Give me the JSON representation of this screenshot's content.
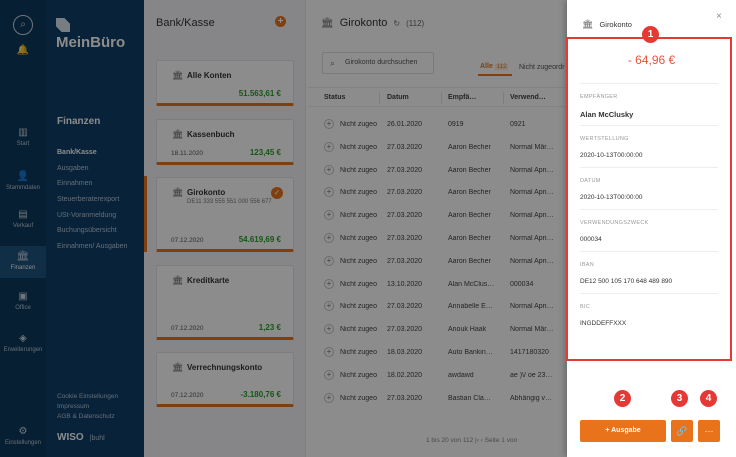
{
  "rail": {
    "items": [
      {
        "label": "",
        "icon": "bell-icon",
        "glyph": "🔔"
      },
      {
        "label": "Start",
        "icon": "chart-icon",
        "glyph": "▥"
      },
      {
        "label": "Stammdaten",
        "icon": "person-icon",
        "glyph": "👤"
      },
      {
        "label": "Verkauf",
        "icon": "document-icon",
        "glyph": "▤"
      },
      {
        "label": "Finanzen",
        "icon": "bank-icon",
        "glyph": "🏛"
      },
      {
        "label": "Office",
        "icon": "office-icon",
        "glyph": "▣"
      },
      {
        "label": "Erweiterungen",
        "icon": "puzzle-icon",
        "glyph": "◈"
      },
      {
        "label": "Einstellungen",
        "icon": "gear-icon",
        "glyph": "⚙"
      }
    ]
  },
  "nav": {
    "logo": "MeinBüro",
    "section": "Finanzen",
    "items": [
      "Bank/Kasse",
      "Ausgaben",
      "Einnahmen",
      "Steuerberaterexport",
      "USt-Voranmeldung",
      "Buchungsübersicht",
      "Einnahmen/ Ausgaben"
    ],
    "footer": [
      "Cookie Einstellungen",
      "Impressum",
      "AGB & Datenschutz"
    ],
    "brand": "WISO",
    "brand_sub": "|buhl"
  },
  "accounts": {
    "header": "Bank/Kasse",
    "cards": [
      {
        "name": "Alle Konten",
        "iban": "",
        "date": "",
        "amount": "51.563,61 €"
      },
      {
        "name": "Kassenbuch",
        "iban": "",
        "date": "18.11.2020",
        "amount": "123,45 €"
      },
      {
        "name": "Girokonto",
        "iban": "DE11 333 555 551 000 556 677",
        "date": "07.12.2020",
        "amount": "54.619,69 €"
      },
      {
        "name": "Kreditkarte",
        "iban": "",
        "date": "07.12.2020",
        "amount": "1,23 €"
      },
      {
        "name": "Verrechnungskonto",
        "iban": "",
        "date": "07.12.2020",
        "amount": "-3.180,76 €"
      }
    ]
  },
  "main": {
    "title": "Girokonto",
    "count": "(112)",
    "search_placeholder": "Girokonto durchsuchen",
    "tab_all": "Alle",
    "tab_all_count": "112",
    "tab_unassigned": "Nicht zugeordr",
    "columns": [
      "Status",
      "Datum",
      "Empfä…",
      "Verwend…"
    ],
    "rows": [
      {
        "status": "Nicht zugeo",
        "date": "26.01.2020",
        "recipient": "0919",
        "purpose": "0921"
      },
      {
        "status": "Nicht zugeo",
        "date": "27.03.2020",
        "recipient": "Aaron Becher",
        "purpose": "Normal Mär…"
      },
      {
        "status": "Nicht zugeo",
        "date": "27.03.2020",
        "recipient": "Aaron Becher",
        "purpose": "Normal Apri…"
      },
      {
        "status": "Nicht zugeo",
        "date": "27.03.2020",
        "recipient": "Aaron Becher",
        "purpose": "Normal Apri…"
      },
      {
        "status": "Nicht zugeo",
        "date": "27.03.2020",
        "recipient": "Aaron Becher",
        "purpose": "Normal Apri…"
      },
      {
        "status": "Nicht zugeo",
        "date": "27.03.2020",
        "recipient": "Aaron Becher",
        "purpose": "Normal Apri…"
      },
      {
        "status": "Nicht zugeo",
        "date": "27.03.2020",
        "recipient": "Aaron Becher",
        "purpose": "Normal Apri…"
      },
      {
        "status": "Nicht zugeo",
        "date": "13.10.2020",
        "recipient": "Alan McClus…",
        "purpose": "000034"
      },
      {
        "status": "Nicht zugeo",
        "date": "27.03.2020",
        "recipient": "Annabelle E…",
        "purpose": "Normal Apri…"
      },
      {
        "status": "Nicht zugeo",
        "date": "27.03.2020",
        "recipient": "Anouk Haak",
        "purpose": "Normal Mär…"
      },
      {
        "status": "Nicht zugeo",
        "date": "18.03.2020",
        "recipient": "Auto Bankin…",
        "purpose": "1417180320"
      },
      {
        "status": "Nicht zugeo",
        "date": "18.02.2020",
        "recipient": "awdawd",
        "purpose": "ae )\\/ oe 23…"
      },
      {
        "status": "Nicht zugeo",
        "date": "27.03.2020",
        "recipient": "Bastian Cla…",
        "purpose": "Abhängig v…"
      }
    ],
    "pager": "1 bis 20 von 112      |‹    ‹    Seite 1 von"
  },
  "panel": {
    "title": "Girokonto",
    "amount": "- 64,96 €",
    "fields": [
      {
        "label": "EMPFÄNGER",
        "value": "Alan McClusky"
      },
      {
        "label": "WERTSTELLUNG",
        "value": "2020-10-13T00:00:00"
      },
      {
        "label": "DATUM",
        "value": "2020-10-13T00:00:00"
      },
      {
        "label": "VERWENDUNGSZWECK",
        "value": "000034"
      },
      {
        "label": "IBAN",
        "value": "DE12 500 105 170 648 489 890"
      },
      {
        "label": "BIC",
        "value": "INGDDEFFXXX"
      }
    ],
    "button_ausgabe": "+ Ausgabe",
    "button_link_icon": "link-icon",
    "button_more": "···",
    "close": "×"
  },
  "markers": [
    "1",
    "2",
    "3",
    "4"
  ],
  "colors": {
    "accent": "#e8731a",
    "nav": "#0f3f68",
    "highlight": "#e53935"
  }
}
